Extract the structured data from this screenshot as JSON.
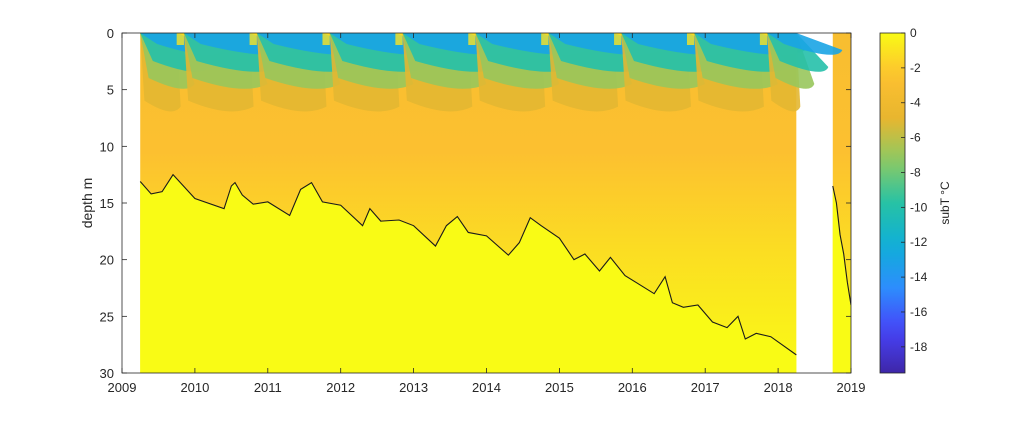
{
  "chart_data": {
    "type": "heatmap",
    "title": "",
    "xlabel": "",
    "ylabel": "depth m",
    "xlim": [
      2009,
      2019
    ],
    "ylim": [
      0,
      30
    ],
    "y_reversed": true,
    "x_ticks": [
      "2009",
      "2010",
      "2011",
      "2012",
      "2013",
      "2014",
      "2015",
      "2016",
      "2017",
      "2018",
      "2019"
    ],
    "y_ticks": [
      "0",
      "5",
      "10",
      "15",
      "20",
      "25",
      "30"
    ],
    "colorbar": {
      "label": "subT °C",
      "range": [
        -19.5,
        0
      ],
      "ticks": [
        "0",
        "-2",
        "-4",
        "-6",
        "-8",
        "-10",
        "-12",
        "-14",
        "-16",
        "-18"
      ],
      "colormap": "parula",
      "colors": [
        "#3e26a8",
        "#4743f8",
        "#2d8dfd",
        "#0fafd8",
        "#27c2a5",
        "#8cca63",
        "#e8b62f",
        "#fdc030",
        "#f9fb15"
      ]
    },
    "data_coverage": [
      [
        2009.25,
        2018.25
      ],
      [
        2018.75,
        2019.0
      ]
    ],
    "seasonal_pattern": {
      "surface_winter_min_C": -14,
      "cold_pulse_peak_depth_m": 5,
      "warm_layer_C": -3,
      "deep_value_C": 0
    },
    "series": [
      {
        "x": [
          2009.25,
          2009.4,
          2009.55,
          2009.7,
          2010.0,
          2010.4,
          2010.5,
          2010.55,
          2010.65,
          2010.8,
          2011.0,
          2011.3,
          2011.45,
          2011.6,
          2011.75,
          2012.0,
          2012.3,
          2012.4,
          2012.55,
          2012.8,
          2013.0,
          2013.3,
          2013.45,
          2013.6,
          2013.75,
          2014.0,
          2014.3,
          2014.45,
          2014.6,
          2014.75,
          2015.0,
          2015.2,
          2015.35,
          2015.55,
          2015.7,
          2015.9,
          2016.3,
          2016.45,
          2016.55,
          2016.7,
          2016.9,
          2017.1,
          2017.3,
          2017.45,
          2017.55,
          2017.7,
          2017.9,
          2018.25
        ],
        "y": [
          13.1,
          14.2,
          14.0,
          12.5,
          14.6,
          15.5,
          13.5,
          13.2,
          14.3,
          15.1,
          14.9,
          16.1,
          13.8,
          13.2,
          14.9,
          15.2,
          17.0,
          15.5,
          16.6,
          16.5,
          17.0,
          18.8,
          17.0,
          16.2,
          17.6,
          17.9,
          19.6,
          18.5,
          16.3,
          17.0,
          18.1,
          20.0,
          19.5,
          21.0,
          19.8,
          21.4,
          23.0,
          21.5,
          23.8,
          24.2,
          24.0,
          25.5,
          26.0,
          25.0,
          27.0,
          26.5,
          26.8,
          28.4
        ]
      },
      {
        "x": [
          2018.75,
          2018.8,
          2018.85,
          2018.9,
          2018.95,
          2019.0
        ],
        "y": [
          13.5,
          15.0,
          17.8,
          19.5,
          22.0,
          24.0
        ]
      }
    ]
  }
}
